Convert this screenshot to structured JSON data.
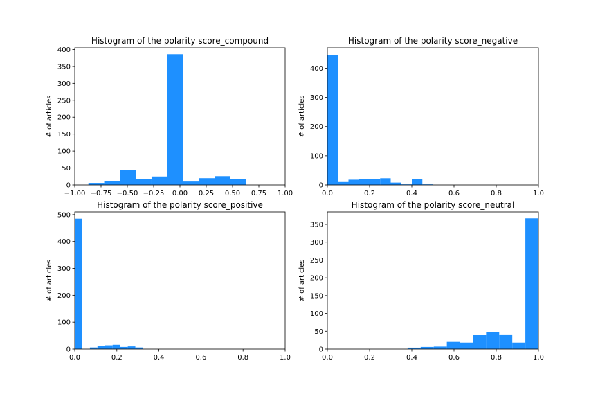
{
  "chart_data": [
    {
      "type": "bar",
      "title": "Histogram of the polarity score_compound",
      "xlabel": "",
      "ylabel": "# of articles",
      "xlim": [
        -1.0,
        1.0
      ],
      "ylim": [
        0,
        405
      ],
      "xticks": [
        "−1.00",
        "−0.75",
        "−0.50",
        "−0.25",
        "0.00",
        "0.25",
        "0.50",
        "0.75",
        "1.00"
      ],
      "xtick_values": [
        -1.0,
        -0.75,
        -0.5,
        -0.25,
        0.0,
        0.25,
        0.5,
        0.75,
        1.0
      ],
      "yticks": [
        "0",
        "50",
        "100",
        "150",
        "200",
        "250",
        "300",
        "350",
        "400"
      ],
      "ytick_values": [
        0,
        50,
        100,
        150,
        200,
        250,
        300,
        350,
        400
      ],
      "bin_edges": [
        -0.87,
        -0.72,
        -0.57,
        -0.42,
        -0.27,
        -0.12,
        0.03,
        0.18,
        0.33,
        0.48,
        0.63
      ],
      "values": [
        6,
        12,
        43,
        18,
        25,
        386,
        10,
        20,
        26,
        17
      ],
      "color": "#1e90ff",
      "grid": false
    },
    {
      "type": "bar",
      "title": "Histogram of the polarity score_negative",
      "xlabel": "",
      "ylabel": "# of articles",
      "xlim": [
        0.0,
        1.0
      ],
      "ylim": [
        0,
        470
      ],
      "xticks": [
        "0.0",
        "0.2",
        "0.4",
        "0.6",
        "0.8",
        "1.0"
      ],
      "xtick_values": [
        0.0,
        0.2,
        0.4,
        0.6,
        0.8,
        1.0
      ],
      "yticks": [
        "0",
        "100",
        "200",
        "300",
        "400"
      ],
      "ytick_values": [
        0,
        100,
        200,
        300,
        400
      ],
      "bin_edges": [
        0.0,
        0.05,
        0.1,
        0.15,
        0.2,
        0.25,
        0.3,
        0.35,
        0.4,
        0.45,
        0.5
      ],
      "values": [
        445,
        10,
        18,
        20,
        20,
        23,
        8,
        2,
        20,
        2
      ],
      "color": "#1e90ff",
      "grid": false
    },
    {
      "type": "bar",
      "title": "Histogram of the polarity score_positive",
      "xlabel": "",
      "ylabel": "# of articles",
      "xlim": [
        0.0,
        1.0
      ],
      "ylim": [
        0,
        510
      ],
      "xticks": [
        "0.0",
        "0.2",
        "0.4",
        "0.6",
        "0.8",
        "1.0"
      ],
      "xtick_values": [
        0.0,
        0.2,
        0.4,
        0.6,
        0.8,
        1.0
      ],
      "yticks": [
        "0",
        "100",
        "200",
        "300",
        "400",
        "500"
      ],
      "ytick_values": [
        0,
        100,
        200,
        300,
        400,
        500
      ],
      "bin_edges": [
        0.0,
        0.036,
        0.072,
        0.108,
        0.144,
        0.18,
        0.216,
        0.252,
        0.288,
        0.324,
        0.36
      ],
      "values": [
        485,
        0,
        6,
        12,
        14,
        16,
        8,
        10,
        6,
        0
      ],
      "color": "#1e90ff",
      "grid": false
    },
    {
      "type": "bar",
      "title": "Histogram of the polarity score_neutral",
      "xlabel": "",
      "ylabel": "# of articles",
      "xlim": [
        0.0,
        1.0
      ],
      "ylim": [
        0,
        385
      ],
      "xticks": [
        "0.0",
        "0.2",
        "0.4",
        "0.6",
        "0.8",
        "1.0"
      ],
      "xtick_values": [
        0.0,
        0.2,
        0.4,
        0.6,
        0.8,
        1.0
      ],
      "yticks": [
        "0",
        "50",
        "100",
        "150",
        "200",
        "250",
        "300",
        "350"
      ],
      "ytick_values": [
        0,
        50,
        100,
        150,
        200,
        250,
        300,
        350
      ],
      "bin_edges": [
        0.38,
        0.442,
        0.504,
        0.566,
        0.628,
        0.69,
        0.752,
        0.814,
        0.876,
        0.938,
        1.0
      ],
      "values": [
        4,
        6,
        7,
        22,
        18,
        40,
        47,
        41,
        18,
        367
      ],
      "color": "#1e90ff",
      "grid": false
    }
  ]
}
